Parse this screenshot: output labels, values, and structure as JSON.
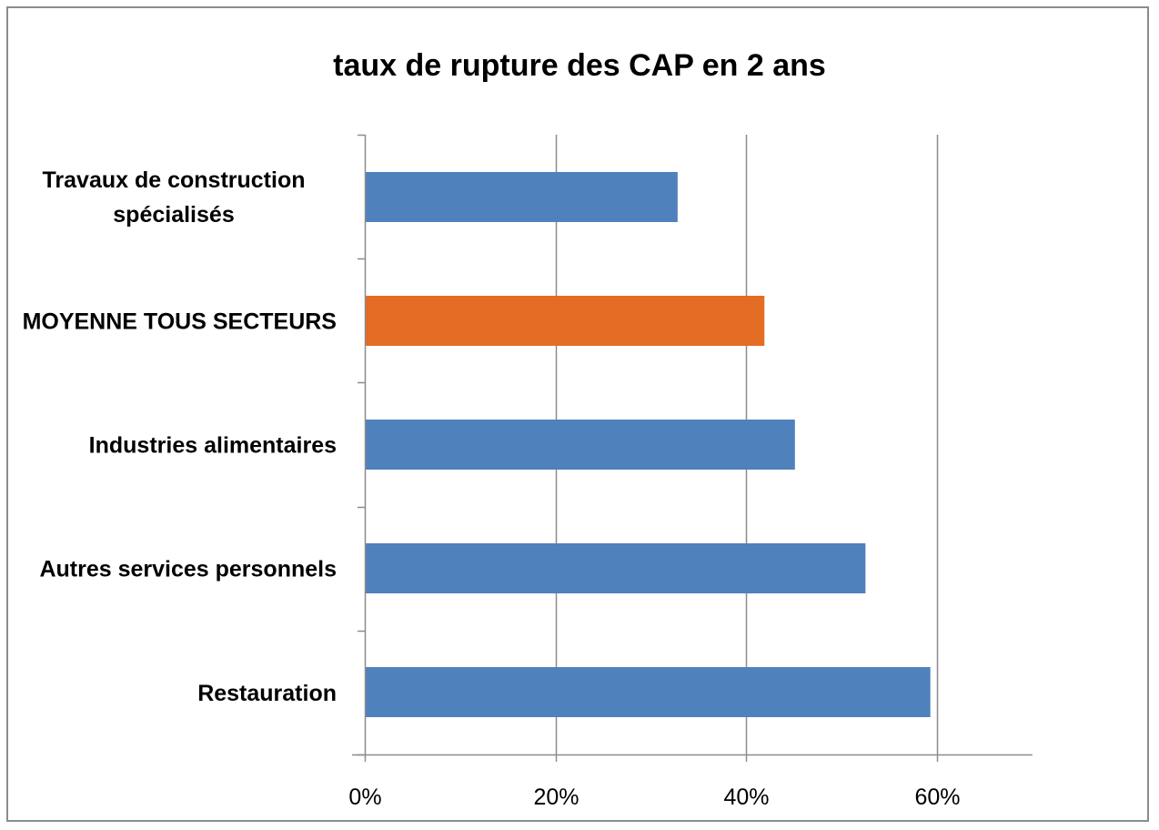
{
  "chart_data": {
    "type": "bar",
    "orientation": "horizontal",
    "title": "taux de rupture des CAP en 2 ans",
    "categories": [
      "Travaux de construction spécialisés",
      "MOYENNE TOUS SECTEURS",
      "Industries alimentaires",
      "Autres services personnels",
      "Restauration"
    ],
    "category_lines": [
      [
        "Travaux de construction",
        "spécialisés"
      ],
      [
        "MOYENNE TOUS SECTEURS"
      ],
      [
        "Industries alimentaires"
      ],
      [
        "Autres services personnels"
      ],
      [
        "Restauration"
      ]
    ],
    "values": [
      0.328,
      0.419,
      0.451,
      0.525,
      0.593
    ],
    "bar_colors": [
      "#4f81bd",
      "#e46c24",
      "#4f81bd",
      "#4f81bd",
      "#4f81bd"
    ],
    "xlim": [
      0,
      0.7
    ],
    "xticks": [
      0,
      0.2,
      0.4,
      0.6
    ],
    "xtick_labels": [
      "0%",
      "20%",
      "40%",
      "60%"
    ],
    "xlabel": "",
    "ylabel": "",
    "grid": "vertical",
    "legend": "none"
  }
}
